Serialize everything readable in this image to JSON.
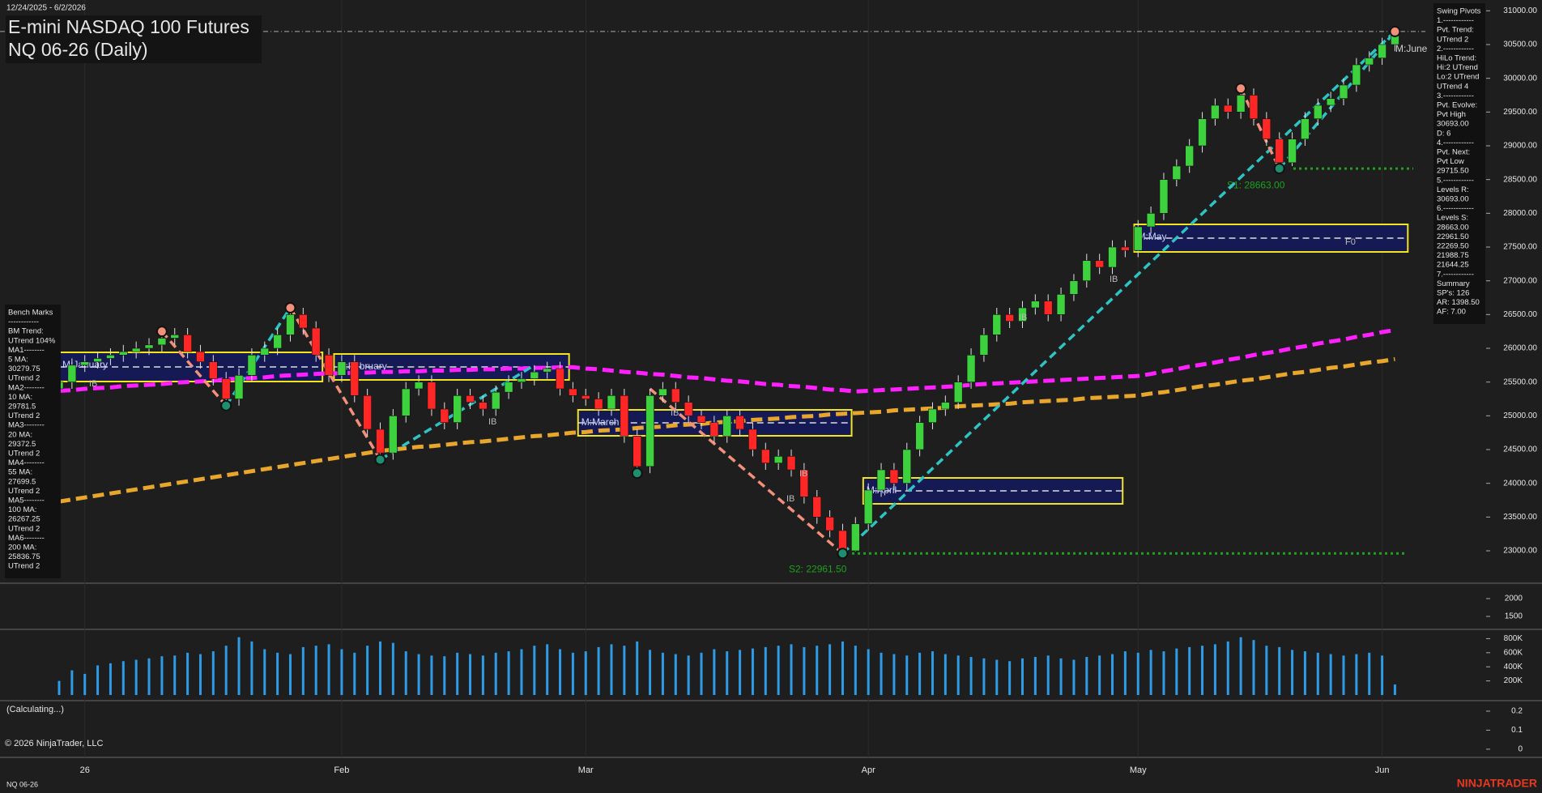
{
  "header": {
    "date_range": "12/24/2025 - 6/2/2026",
    "title": "E-mini NASDAQ 100 Futures",
    "subtitle": "NQ 06-26 (Daily)"
  },
  "chart_data": {
    "type": "candlestick",
    "categories": [
      null,
      null,
      "26",
      null,
      null,
      null,
      null,
      null,
      null,
      null,
      null,
      null,
      null,
      null,
      null,
      null,
      null,
      null,
      null,
      null,
      null,
      null,
      "Feb",
      null,
      null,
      null,
      null,
      null,
      null,
      null,
      null,
      null,
      null,
      null,
      null,
      null,
      null,
      null,
      null,
      null,
      null,
      "Mar",
      null,
      null,
      null,
      null,
      null,
      null,
      null,
      null,
      null,
      null,
      null,
      null,
      null,
      null,
      null,
      null,
      null,
      null,
      null,
      null,
      null,
      "Apr",
      null,
      null,
      null,
      null,
      null,
      null,
      null,
      null,
      null,
      null,
      null,
      null,
      null,
      null,
      null,
      null,
      null,
      null,
      null,
      null,
      "May",
      null,
      null,
      null,
      null,
      null,
      null,
      null,
      null,
      null,
      null,
      null,
      null,
      null,
      null,
      null,
      null,
      null,
      null,
      "Jun",
      null
    ],
    "open": [
      25400,
      25500,
      25750,
      25800,
      25850,
      25900,
      25950,
      26000,
      26050,
      26150,
      26200,
      25950,
      25800,
      25550,
      25250,
      25600,
      25900,
      26000,
      26200,
      26500,
      26300,
      25900,
      25600,
      25800,
      25300,
      24800,
      24450,
      25000,
      25400,
      25500,
      25100,
      24900,
      25300,
      25200,
      25100,
      25350,
      25500,
      25550,
      25650,
      25700,
      25400,
      25300,
      25250,
      25100,
      25300,
      24700,
      24250,
      25300,
      25400,
      25200,
      25000,
      24900,
      24700,
      25000,
      24800,
      24500,
      24300,
      24400,
      24200,
      23800,
      23500,
      23300,
      23000,
      23400,
      23900,
      24200,
      24000,
      24500,
      24900,
      25100,
      25200,
      25500,
      25900,
      26200,
      26500,
      26400,
      26600,
      26700,
      26500,
      26800,
      27000,
      27300,
      27200,
      27500,
      27450,
      27800,
      28000,
      28500,
      28700,
      29000,
      29400,
      29600,
      29500,
      29750,
      29400,
      29100,
      28750,
      29100,
      29400,
      29600,
      29700,
      29900,
      30200,
      30300,
      30500
    ],
    "high": [
      25600,
      25850,
      25900,
      25950,
      26000,
      26050,
      26100,
      26150,
      26250,
      26300,
      26300,
      26050,
      25900,
      25650,
      25700,
      26000,
      26100,
      26300,
      26600,
      26600,
      26400,
      26000,
      25900,
      25900,
      25400,
      24900,
      25100,
      25500,
      25600,
      25600,
      25200,
      25400,
      25400,
      25300,
      25450,
      25600,
      25650,
      25750,
      25800,
      25800,
      25500,
      25400,
      25350,
      25400,
      25400,
      24800,
      25400,
      25500,
      25500,
      25300,
      25100,
      25000,
      25100,
      25100,
      24900,
      24600,
      24500,
      24500,
      24300,
      23900,
      23600,
      23400,
      23500,
      24000,
      24300,
      24300,
      24600,
      25000,
      25200,
      25300,
      25600,
      26000,
      26300,
      26600,
      26600,
      26700,
      26800,
      26800,
      26900,
      27100,
      27400,
      27400,
      27600,
      27600,
      27900,
      28100,
      28600,
      28800,
      29100,
      29500,
      29700,
      29700,
      29850,
      29850,
      29500,
      29200,
      29200,
      29500,
      29700,
      29800,
      30000,
      30300,
      30400,
      30600,
      30693
    ],
    "low": [
      25300,
      25400,
      25650,
      25700,
      25750,
      25800,
      25850,
      25900,
      25950,
      26050,
      25850,
      25700,
      25450,
      25150,
      25150,
      25500,
      25800,
      25900,
      26100,
      26200,
      25800,
      25500,
      25500,
      25200,
      24700,
      24350,
      24350,
      24900,
      25300,
      25000,
      24800,
      24800,
      25100,
      25000,
      25000,
      25250,
      25400,
      25450,
      25550,
      25300,
      25200,
      25150,
      25000,
      25000,
      24600,
      24150,
      24150,
      25200,
      25100,
      24900,
      24800,
      24600,
      24600,
      24700,
      24400,
      24200,
      24200,
      24100,
      23700,
      23400,
      23200,
      22961.5,
      22990,
      23300,
      23800,
      23900,
      23900,
      24400,
      24800,
      25000,
      25100,
      25400,
      25800,
      26100,
      26300,
      26300,
      26500,
      26400,
      26400,
      26700,
      26900,
      27100,
      27100,
      27350,
      27350,
      27700,
      27900,
      28400,
      28600,
      28900,
      29300,
      29400,
      29400,
      29300,
      29000,
      28663,
      28700,
      29000,
      29300,
      29500,
      29600,
      29800,
      30100,
      30200,
      30400
    ],
    "close": [
      25500,
      25750,
      25800,
      25850,
      25900,
      25950,
      26000,
      26050,
      26150,
      26200,
      25950,
      25800,
      25550,
      25250,
      25600,
      25900,
      26000,
      26200,
      26500,
      26300,
      25900,
      25600,
      25800,
      25300,
      24800,
      24450,
      25000,
      25400,
      25500,
      25100,
      24900,
      25300,
      25200,
      25100,
      25350,
      25500,
      25550,
      25650,
      25700,
      25400,
      25300,
      25250,
      25100,
      25300,
      24700,
      24250,
      25300,
      25400,
      25200,
      25000,
      24900,
      24700,
      25000,
      24800,
      24500,
      24300,
      24400,
      24200,
      23800,
      23500,
      23300,
      23000,
      23400,
      23900,
      24200,
      24000,
      24500,
      24900,
      25100,
      25200,
      25500,
      25900,
      26200,
      26500,
      26400,
      26600,
      26700,
      26500,
      26800,
      27000,
      27300,
      27200,
      27500,
      27450,
      27800,
      28000,
      28500,
      28700,
      29000,
      29400,
      29600,
      29500,
      29750,
      29400,
      29100,
      28750,
      29100,
      29400,
      29600,
      29700,
      29900,
      30200,
      30300,
      30500,
      30690
    ],
    "up_color": "#3ed13e",
    "down_color": "#ff2626",
    "ylim": [
      22520,
      31160
    ],
    "yticks": [
      {
        "value": 23000,
        "label": "23000.00"
      },
      {
        "value": 23500,
        "label": "23500.00"
      },
      {
        "value": 24000,
        "label": "24000.00"
      },
      {
        "value": 24500,
        "label": "24500.00"
      },
      {
        "value": 25000,
        "label": "25000.00"
      },
      {
        "value": 25500,
        "label": "25500.00"
      },
      {
        "value": 26000,
        "label": "26000.00"
      },
      {
        "value": 26500,
        "label": "26500.00"
      },
      {
        "value": 27000,
        "label": "27000.00"
      },
      {
        "value": 27500,
        "label": "27500.00"
      },
      {
        "value": 28000,
        "label": "28000.00"
      },
      {
        "value": 28500,
        "label": "28500.00"
      },
      {
        "value": 29000,
        "label": "29000.00"
      },
      {
        "value": 29500,
        "label": "29500.00"
      },
      {
        "value": 30000,
        "label": "30000.00"
      },
      {
        "value": 30500,
        "label": "30500.00"
      },
      {
        "value": 31000,
        "label": "31000.00"
      }
    ],
    "series": [
      {
        "color": "#ff1fff",
        "values": [
          25370,
          25380,
          25400,
          25410,
          25420,
          25440,
          25450,
          25460,
          25470,
          25490,
          25500,
          25510,
          25520,
          25540,
          25550,
          25560,
          25570,
          25590,
          25600,
          25610,
          25620,
          25630,
          25630,
          25640,
          25640,
          25650,
          25650,
          25660,
          25660,
          25670,
          25670,
          25680,
          25680,
          25690,
          25690,
          25700,
          25700,
          25710,
          25710,
          25720,
          25720,
          25700,
          25690,
          25670,
          25650,
          25640,
          25620,
          25610,
          25590,
          25570,
          25560,
          25540,
          25520,
          25510,
          25490,
          25470,
          25460,
          25440,
          25430,
          25410,
          25390,
          25380,
          25360,
          25370,
          25380,
          25390,
          25400,
          25410,
          25420,
          25430,
          25440,
          25460,
          25470,
          25480,
          25490,
          25500,
          25510,
          25520,
          25530,
          25540,
          25550,
          25560,
          25570,
          25580,
          25590,
          25620,
          25660,
          25690,
          25730,
          25760,
          25790,
          25830,
          25860,
          25900,
          25930,
          25960,
          26000,
          26030,
          26070,
          26100,
          26130,
          26170,
          26200,
          26240,
          26270
        ]
      },
      {
        "color": "#e8a62c",
        "values": [
          23730,
          23760,
          23790,
          23820,
          23850,
          23880,
          23910,
          23940,
          23970,
          24000,
          24030,
          24060,
          24090,
          24120,
          24150,
          24180,
          24210,
          24240,
          24270,
          24300,
          24330,
          24360,
          24390,
          24420,
          24450,
          24480,
          24500,
          24520,
          24540,
          24550,
          24570,
          24590,
          24610,
          24620,
          24640,
          24660,
          24680,
          24700,
          24710,
          24730,
          24750,
          24760,
          24780,
          24790,
          24800,
          24820,
          24830,
          24840,
          24860,
          24870,
          24880,
          24900,
          24910,
          24920,
          24940,
          24950,
          24960,
          24980,
          24990,
          25000,
          25020,
          25030,
          25040,
          25050,
          25060,
          25080,
          25090,
          25100,
          25110,
          25120,
          25140,
          25150,
          25160,
          25170,
          25180,
          25200,
          25210,
          25220,
          25230,
          25240,
          25260,
          25270,
          25280,
          25290,
          25300,
          25330,
          25350,
          25380,
          25410,
          25440,
          25460,
          25490,
          25520,
          25540,
          25570,
          25600,
          25630,
          25650,
          25680,
          25710,
          25730,
          25760,
          25790,
          25810,
          25840
        ]
      }
    ],
    "levels": [
      {
        "label": "S1: 28663.00",
        "value": 28663,
        "color": "#1fa01f"
      },
      {
        "label": "S2: 22961.50",
        "value": 22961.5,
        "color": "#1fa01f"
      }
    ],
    "reference_line": 30693,
    "month_boxes": [
      {
        "label": "M:January",
        "high": 25940,
        "low": 25508
      },
      {
        "label": "M:February",
        "high": 25916,
        "low": 25532
      },
      {
        "label": "M:March",
        "high": 25088,
        "low": 24704
      },
      {
        "label": "M:April",
        "high": 24080,
        "low": 23696
      },
      {
        "label": "M:May",
        "high": 27836,
        "low": 27428
      }
    ],
    "june_label": "M:June",
    "annotations": [
      "IB",
      "IB",
      "IB",
      "IB",
      "IB",
      "IB",
      "IB",
      "F0"
    ],
    "volume": {
      "color": "#2e9be6",
      "ylim": [
        0,
        920000
      ],
      "yticks": [
        {
          "value": 200000,
          "label": "200K"
        },
        {
          "value": 400000,
          "label": "400K"
        },
        {
          "value": 600000,
          "label": "600K"
        },
        {
          "value": 800000,
          "label": "800K"
        }
      ],
      "values": [
        200000,
        350000,
        300000,
        420000,
        450000,
        480000,
        500000,
        520000,
        550000,
        560000,
        600000,
        580000,
        620000,
        700000,
        820000,
        760000,
        650000,
        600000,
        580000,
        680000,
        700000,
        720000,
        650000,
        600000,
        700000,
        760000,
        740000,
        620000,
        580000,
        560000,
        550000,
        600000,
        580000,
        560000,
        600000,
        620000,
        650000,
        700000,
        720000,
        650000,
        600000,
        620000,
        680000,
        720000,
        700000,
        760000,
        640000,
        600000,
        580000,
        560000,
        600000,
        650000,
        620000,
        640000,
        660000,
        680000,
        700000,
        720000,
        680000,
        700000,
        720000,
        760000,
        700000,
        650000,
        600000,
        580000,
        560000,
        600000,
        620000,
        580000,
        560000,
        540000,
        520000,
        500000,
        480000,
        520000,
        540000,
        560000,
        520000,
        500000,
        540000,
        560000,
        580000,
        620000,
        600000,
        640000,
        620000,
        660000,
        680000,
        700000,
        720000,
        760000,
        820000,
        780000,
        700000,
        680000,
        640000,
        620000,
        600000,
        580000,
        560000,
        580000,
        600000,
        560000,
        150000
      ]
    },
    "indicator": {
      "ylim": [
        1136,
        2409
      ],
      "yticks": [
        1500,
        2000
      ]
    },
    "lower": {
      "ylim": [
        -0.043,
        0.251
      ],
      "yticks": [
        0,
        0.1,
        0.2
      ],
      "status": "(Calculating...)"
    }
  },
  "swing_pivots": [
    "Swing Pivots",
    "1.------------",
    "Pvt. Trend:",
    "UTrend 2",
    "2.------------",
    "HiLo Trend:",
    "Hi:2 UTrend",
    "Lo:2 UTrend",
    "UTrend 4",
    "3.------------",
    "Pvt. Evolve:",
    "Pvt High",
    "30693.00",
    "D: 6",
    "4.------------",
    "Pvt. Next:",
    "Pvt Low",
    "29715.50",
    "5.------------",
    "Levels R:",
    "30693.00",
    "6.------------",
    "Levels S:",
    "28663.00",
    "22961.50",
    "22269.50",
    "21988.75",
    "21644.25",
    "7.------------",
    "Summary",
    "SP's: 126",
    "AR: 1398.50",
    "AF: 7.00"
  ],
  "bench_marks": [
    "Bench Marks",
    "------------",
    "BM Trend:",
    "UTrend 104%",
    "MA1--------",
    "5 MA:",
    "30279.75",
    "UTrend 2",
    "MA2--------",
    "10 MA:",
    "29781.5",
    "UTrend 2",
    "MA3--------",
    "20 MA:",
    "29372.5",
    "UTrend 2",
    "MA4--------",
    "55 MA:",
    "27699.5",
    "UTrend 2",
    "MA5--------",
    "100 MA:",
    "26267.25",
    "UTrend 2",
    "MA6--------",
    "200 MA:",
    "25836.75",
    "UTrend 2"
  ],
  "footer": {
    "copyright": "© 2026 NinjaTrader, LLC",
    "symbol": "NQ 06-26",
    "brand": "NINJATRADER"
  }
}
